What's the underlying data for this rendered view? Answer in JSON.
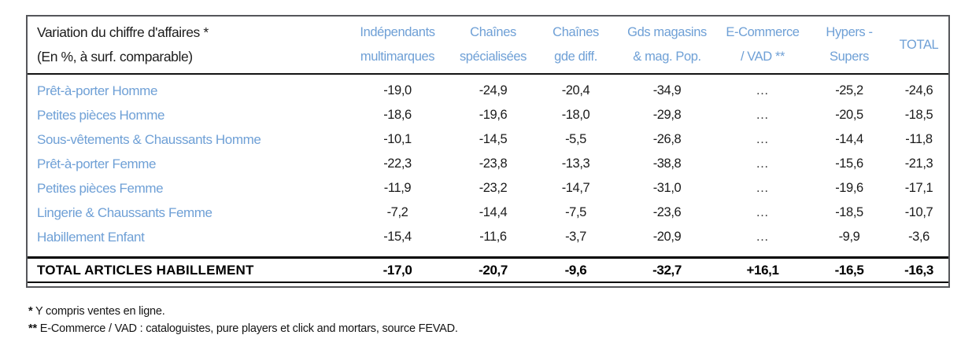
{
  "table": {
    "title_line1": "Variation du chiffre d'affaires *",
    "title_line2": "(En %, à surf. comparable)",
    "columns": [
      {
        "line1": "Indépendants",
        "line2": "multimarques"
      },
      {
        "line1": "Chaînes",
        "line2": "spécialisées"
      },
      {
        "line1": "Chaînes",
        "line2": "gde diff."
      },
      {
        "line1": "Gds magasins",
        "line2": "& mag. Pop."
      },
      {
        "line1": "E-Commerce",
        "line2": "/ VAD **"
      },
      {
        "line1": "Hypers -",
        "line2": "Supers"
      },
      {
        "line1": "TOTAL",
        "line2": ""
      }
    ],
    "rows": [
      {
        "label": "Prêt-à-porter Homme",
        "values": [
          "-19,0",
          "-24,9",
          "-20,4",
          "-34,9",
          "…",
          "-25,2",
          "-24,6"
        ]
      },
      {
        "label": "Petites pièces Homme",
        "values": [
          "-18,6",
          "-19,6",
          "-18,0",
          "-29,8",
          "…",
          "-20,5",
          "-18,5"
        ]
      },
      {
        "label": "Sous-vêtements & Chaussants Homme",
        "values": [
          "-10,1",
          "-14,5",
          "-5,5",
          "-26,8",
          "…",
          "-14,4",
          "-11,8"
        ]
      },
      {
        "label": "Prêt-à-porter Femme",
        "values": [
          "-22,3",
          "-23,8",
          "-13,3",
          "-38,8",
          "…",
          "-15,6",
          "-21,3"
        ]
      },
      {
        "label": "Petites pièces Femme",
        "values": [
          "-11,9",
          "-23,2",
          "-14,7",
          "-31,0",
          "…",
          "-19,6",
          "-17,1"
        ]
      },
      {
        "label": "Lingerie & Chaussants Femme",
        "values": [
          "-7,2",
          "-14,4",
          "-7,5",
          "-23,6",
          "…",
          "-18,5",
          "-10,7"
        ]
      },
      {
        "label": "Habillement Enfant",
        "values": [
          "-15,4",
          "-11,6",
          "-3,7",
          "-20,9",
          "…",
          "-9,9",
          "-3,6"
        ]
      }
    ],
    "total_row": {
      "label": "TOTAL ARTICLES HABILLEMENT",
      "values": [
        "-17,0",
        "-20,7",
        "-9,6",
        "-32,7",
        "+16,1",
        "-16,5",
        "-16,3"
      ]
    },
    "footnotes": [
      {
        "marker": "*",
        "text": " Y compris ventes en ligne."
      },
      {
        "marker": "**",
        "text": " E-Commerce / VAD : cataloguistes, pure players et click and mortars, source FEVAD."
      }
    ],
    "colors": {
      "header_blue": "#6fa0d6",
      "label_blue": "#6fa0d6",
      "value_black": "#1b1b1b",
      "outer_border_gray": "#55565a",
      "rule_black": "#000000"
    }
  },
  "chart_data": {
    "type": "table",
    "title": "Variation du chiffre d'affaires (En %, à surf. comparable)",
    "columns": [
      "Indépendants multimarques",
      "Chaînes spécialisées",
      "Chaînes gde diff.",
      "Gds magasins & mag. Pop.",
      "E-Commerce / VAD",
      "Hypers - Supers",
      "TOTAL"
    ],
    "rows": [
      {
        "category": "Prêt-à-porter Homme",
        "values": [
          -19.0,
          -24.9,
          -20.4,
          -34.9,
          null,
          -25.2,
          -24.6
        ]
      },
      {
        "category": "Petites pièces Homme",
        "values": [
          -18.6,
          -19.6,
          -18.0,
          -29.8,
          null,
          -20.5,
          -18.5
        ]
      },
      {
        "category": "Sous-vêtements & Chaussants Homme",
        "values": [
          -10.1,
          -14.5,
          -5.5,
          -26.8,
          null,
          -14.4,
          -11.8
        ]
      },
      {
        "category": "Prêt-à-porter Femme",
        "values": [
          -22.3,
          -23.8,
          -13.3,
          -38.8,
          null,
          -15.6,
          -21.3
        ]
      },
      {
        "category": "Petites pièces Femme",
        "values": [
          -11.9,
          -23.2,
          -14.7,
          -31.0,
          null,
          -19.6,
          -17.1
        ]
      },
      {
        "category": "Lingerie & Chaussants Femme",
        "values": [
          -7.2,
          -14.4,
          -7.5,
          -23.6,
          null,
          -18.5,
          -10.7
        ]
      },
      {
        "category": "Habillement Enfant",
        "values": [
          -15.4,
          -11.6,
          -3.7,
          -20.9,
          null,
          -9.9,
          -3.6
        ]
      },
      {
        "category": "TOTAL ARTICLES HABILLEMENT",
        "values": [
          -17.0,
          -20.7,
          -9.6,
          -32.7,
          16.1,
          -16.5,
          -16.3
        ]
      }
    ],
    "units": "percent",
    "notes": [
      "Y compris ventes en ligne.",
      "E-Commerce / VAD : cataloguistes, pure players et click and mortars, source FEVAD."
    ]
  }
}
